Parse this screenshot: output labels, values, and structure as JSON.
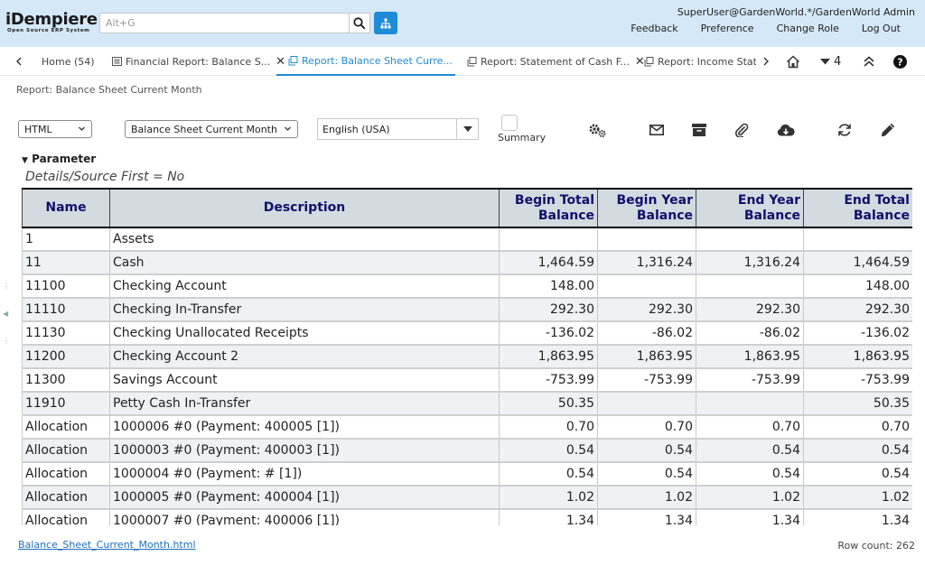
{
  "app": {
    "logo_main": "iDempiere",
    "logo_sub": "Open Source ERP System",
    "search_placeholder": "Alt+G",
    "user": "SuperUser@GardenWorld.*/GardenWorld Admin",
    "links": [
      "Feedback",
      "Preference",
      "Change Role",
      "Log Out"
    ]
  },
  "tabs": [
    {
      "label": "Home (54)",
      "active": false,
      "closable": false
    },
    {
      "label": "Financial Report: Balance S...",
      "active": false,
      "closable": true
    },
    {
      "label": "Report: Balance Sheet Curre...",
      "active": true,
      "closable": true
    },
    {
      "label": "Report: Statement of Cash F...",
      "active": false,
      "closable": true
    },
    {
      "label": "Report: Income Staten",
      "active": false,
      "closable": false
    }
  ],
  "tab_count": "4",
  "breadcrumb": "Report: Balance Sheet Current Month",
  "toolbar": {
    "format": "HTML",
    "report": "Balance Sheet Current Month",
    "language": "English (USA)",
    "summary_label": "Summary"
  },
  "parameter": {
    "title": "Parameter",
    "detail": "Details/Source First = No"
  },
  "report": {
    "columns": [
      "Name",
      "Description",
      "Begin Total Balance",
      "Begin Year Balance",
      "End Year Balance",
      "End Total Balance"
    ],
    "rows": [
      [
        "1",
        "Assets",
        "",
        "",
        "",
        ""
      ],
      [
        "11",
        "Cash",
        "1,464.59",
        "1,316.24",
        "1,316.24",
        "1,464.59"
      ],
      [
        "11100",
        "Checking Account",
        "148.00",
        "",
        "",
        "148.00"
      ],
      [
        "11110",
        "Checking In-Transfer",
        "292.30",
        "292.30",
        "292.30",
        "292.30"
      ],
      [
        "11130",
        "Checking Unallocated Receipts",
        "-136.02",
        "-86.02",
        "-86.02",
        "-136.02"
      ],
      [
        "11200",
        "Checking Account 2",
        "1,863.95",
        "1,863.95",
        "1,863.95",
        "1,863.95"
      ],
      [
        "11300",
        "Savings Account",
        "-753.99",
        "-753.99",
        "-753.99",
        "-753.99"
      ],
      [
        "11910",
        "Petty Cash In-Transfer",
        "50.35",
        "",
        "",
        "50.35"
      ],
      [
        "Allocation",
        "1000006 #0 (Payment: 400005 [1])",
        "0.70",
        "0.70",
        "0.70",
        "0.70"
      ],
      [
        "Allocation",
        "1000003 #0 (Payment: 400003 [1])",
        "0.54",
        "0.54",
        "0.54",
        "0.54"
      ],
      [
        "Allocation",
        "1000004 #0 (Payment: # [1])",
        "0.54",
        "0.54",
        "0.54",
        "0.54"
      ],
      [
        "Allocation",
        "1000005 #0 (Payment: 400004 [1])",
        "1.02",
        "1.02",
        "1.02",
        "1.02"
      ],
      [
        "Allocation",
        "1000007 #0 (Payment: 400006 [1])",
        "1.34",
        "1.34",
        "1.34",
        "1.34"
      ]
    ]
  },
  "footer": {
    "file_link": "Balance_Sheet_Current_Month.html",
    "row_count": "Row count: 262"
  }
}
